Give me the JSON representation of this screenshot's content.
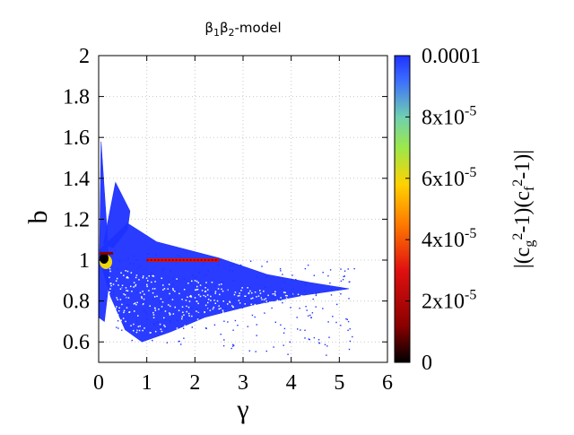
{
  "chart_data": {
    "type": "scatter",
    "title": "β₁β₂-model",
    "title_parts": {
      "base": "β",
      "sub1": "1",
      "mid": "β",
      "sub2": "2",
      "rest": "-model"
    },
    "xlabel": "γ",
    "ylabel": "b",
    "xlim": [
      0,
      6
    ],
    "ylim": [
      0.5,
      2
    ],
    "x_ticks": [
      "0",
      "1",
      "2",
      "3",
      "4",
      "5",
      "6"
    ],
    "y_ticks": [
      "0.6",
      "0.8",
      "1",
      "1.2",
      "1.4",
      "1.6",
      "1.8",
      "2"
    ],
    "x_tick_values": [
      0,
      1,
      2,
      3,
      4,
      5,
      6
    ],
    "y_tick_values": [
      0.6,
      0.8,
      1.0,
      1.2,
      1.4,
      1.6,
      1.8,
      2.0
    ],
    "grid": true,
    "colorbar": {
      "range": [
        0,
        0.0001
      ],
      "tick_values": [
        0,
        2e-05,
        4e-05,
        6e-05,
        8e-05,
        0.0001
      ],
      "tick_labels": [
        {
          "base": "0",
          "exp": ""
        },
        {
          "base": "2x10",
          "exp": "-5"
        },
        {
          "base": "4x10",
          "exp": "-5"
        },
        {
          "base": "6x10",
          "exp": "-5"
        },
        {
          "base": "8x10",
          "exp": "-5"
        },
        {
          "base": "0.0001",
          "exp": ""
        }
      ],
      "label": "|(cg²-1)(cf²-1)|",
      "label_parts": {
        "p1": "|(c",
        "s1": "g",
        "e1": "2",
        "p2": "-1)(c",
        "s2": "f",
        "e2": "2",
        "p3": "-1)|"
      },
      "colors": [
        "#000000",
        "#8b0000",
        "#e01010",
        "#ff7a00",
        "#ffd200",
        "#9ce84a",
        "#6fd0b0",
        "#1e32ff"
      ]
    },
    "regions": [
      {
        "name": "main-wedge",
        "color_value": 0.0001,
        "outline": [
          [
            0.02,
            1.05
          ],
          [
            0.6,
            1.18
          ],
          [
            1.2,
            1.09
          ],
          [
            2.5,
            1.01
          ],
          [
            3.5,
            0.93
          ],
          [
            4.4,
            0.89
          ],
          [
            5.2,
            0.86
          ],
          [
            4.3,
            0.83
          ],
          [
            3.2,
            0.78
          ],
          [
            2.2,
            0.72
          ],
          [
            1.5,
            0.65
          ],
          [
            0.9,
            0.6
          ],
          [
            0.55,
            0.66
          ],
          [
            0.25,
            0.82
          ],
          [
            0.05,
            0.98
          ]
        ]
      },
      {
        "name": "upper-fan",
        "color_value": 0.0001,
        "outline": [
          [
            0.1,
            1.08
          ],
          [
            0.35,
            1.38
          ],
          [
            0.65,
            1.24
          ],
          [
            0.6,
            1.15
          ],
          [
            0.3,
            1.06
          ]
        ]
      },
      {
        "name": "left-column",
        "color_value": 0.0001,
        "outline": [
          [
            0.0,
            0.72
          ],
          [
            0.05,
            1.58
          ],
          [
            0.18,
            1.12
          ],
          [
            0.22,
            0.9
          ],
          [
            0.12,
            0.7
          ]
        ]
      }
    ],
    "bands": [
      {
        "name": "b-equals-1-band",
        "x_range": [
          1.0,
          2.5
        ],
        "y": 1.0,
        "color_value": 3e-05
      }
    ],
    "hotspot": {
      "x": 0.15,
      "y": 1.0,
      "color_values": [
        0,
        6e-05
      ]
    }
  }
}
